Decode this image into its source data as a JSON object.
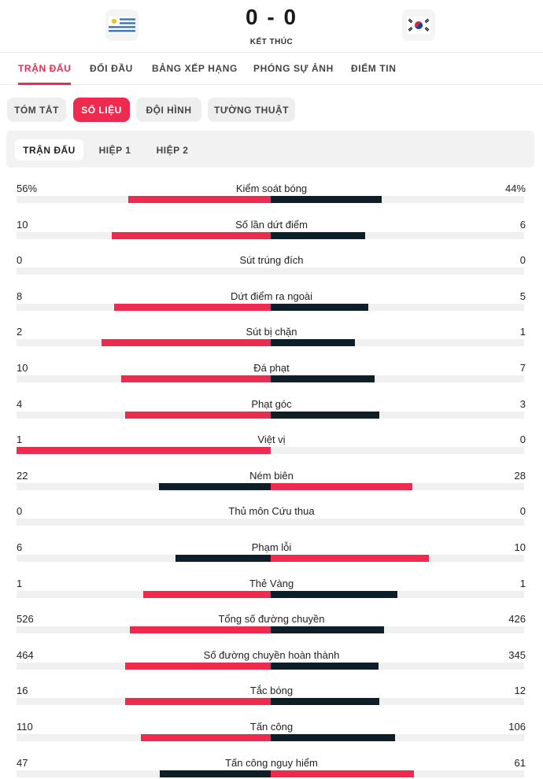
{
  "match": {
    "score": "0 - 0",
    "status": "KẾT THÚC",
    "home_flag": "uruguay-flag-icon",
    "away_flag": "south-korea-flag-icon"
  },
  "main_tabs": [
    "TRẬN ĐẤU",
    "ĐỐI ĐẦU",
    "BẢNG XẾP HẠNG",
    "PHÓNG SỰ ẢNH",
    "ĐIỂM TIN"
  ],
  "sub_tabs": [
    "TÓM TẮT",
    "SỐ LIỆU",
    "ĐỘI HÌNH",
    "TƯỜNG THUẬT"
  ],
  "periods": [
    "TRẬN ĐẤU",
    "HIỆP 1",
    "HIỆP 2"
  ],
  "colors": {
    "accent": "#ee2a4e",
    "dark": "#0e1e29",
    "track": "#f0f0f0"
  },
  "stats": [
    {
      "label": "Kiểm soát bóng",
      "home": "56%",
      "away": "44%",
      "h": 56,
      "a": 44
    },
    {
      "label": "Số lần dứt điểm",
      "home": "10",
      "away": "6",
      "h": 10,
      "a": 6
    },
    {
      "label": "Sút trúng đích",
      "home": "0",
      "away": "0",
      "h": 0,
      "a": 0
    },
    {
      "label": "Dứt điểm ra ngoài",
      "home": "8",
      "away": "5",
      "h": 8,
      "a": 5
    },
    {
      "label": "Sút bị chặn",
      "home": "2",
      "away": "1",
      "h": 2,
      "a": 1
    },
    {
      "label": "Đá phạt",
      "home": "10",
      "away": "7",
      "h": 10,
      "a": 7
    },
    {
      "label": "Phạt góc",
      "home": "4",
      "away": "3",
      "h": 4,
      "a": 3
    },
    {
      "label": "Việt vị",
      "home": "1",
      "away": "0",
      "h": 1,
      "a": 0
    },
    {
      "label": "Ném biên",
      "home": "22",
      "away": "28",
      "h": 22,
      "a": 28
    },
    {
      "label": "Thủ môn Cứu thua",
      "home": "0",
      "away": "0",
      "h": 0,
      "a": 0
    },
    {
      "label": "Phạm lỗi",
      "home": "6",
      "away": "10",
      "h": 6,
      "a": 10
    },
    {
      "label": "Thẻ Vàng",
      "home": "1",
      "away": "1",
      "h": 1,
      "a": 1
    },
    {
      "label": "Tổng số đường chuyền",
      "home": "526",
      "away": "426",
      "h": 526,
      "a": 426
    },
    {
      "label": "Số đường chuyền hoàn thành",
      "home": "464",
      "away": "345",
      "h": 464,
      "a": 345
    },
    {
      "label": "Tắc bóng",
      "home": "16",
      "away": "12",
      "h": 16,
      "a": 12
    },
    {
      "label": "Tấn công",
      "home": "110",
      "away": "106",
      "h": 110,
      "a": 106
    },
    {
      "label": "Tấn công nguy hiểm",
      "home": "47",
      "away": "61",
      "h": 47,
      "a": 61
    }
  ]
}
